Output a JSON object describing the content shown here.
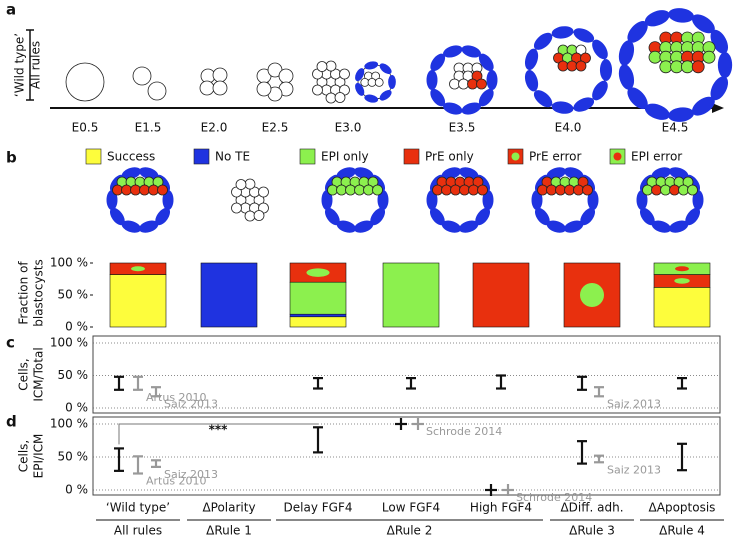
{
  "panel_labels": [
    "a",
    "b",
    "c",
    "d"
  ],
  "a": {
    "ylabel": [
      "‘Wild type’",
      "All rules"
    ],
    "stages": [
      "E0.5",
      "E1.5",
      "E2.0",
      "E2.5",
      "E3.0",
      "E3.5",
      "E4.0",
      "E4.5"
    ]
  },
  "chart_data": [
    {
      "type": "stacked_bar",
      "ylabel": [
        "Fraction of",
        "blastocysts"
      ],
      "categories": [
        "‘Wild type’",
        "ΔPolarity",
        "Delay FGF4",
        "Low FGF4",
        "High FGF4",
        "ΔDiff. adh.",
        "ΔApoptosis"
      ],
      "groups": [
        "All rules",
        "ΔRule 1",
        "ΔRule 2",
        "ΔRule 3",
        "ΔRule 4"
      ],
      "series": [
        {
          "name": "Success",
          "color": "#fdfd3c",
          "values": [
            82,
            0,
            16,
            0,
            0,
            0,
            62
          ]
        },
        {
          "name": "No TE",
          "color": "#1f33e0",
          "values": [
            0,
            100,
            4,
            0,
            0,
            0,
            0
          ]
        },
        {
          "name": "EPI only",
          "color": "#8cf04e",
          "values": [
            0,
            0,
            50,
            100,
            0,
            0,
            0
          ]
        },
        {
          "name": "PrE only",
          "color": "#e8300e",
          "values": [
            0,
            0,
            0,
            0,
            100,
            0,
            0
          ]
        },
        {
          "name": "PrE error",
          "color": "#e8300e",
          "inner": "#8cf04e",
          "values": [
            18,
            0,
            30,
            0,
            0,
            100,
            20
          ]
        },
        {
          "name": "EPI error",
          "color": "#8cf04e",
          "inner": "#e8300e",
          "values": [
            0,
            0,
            0,
            0,
            0,
            0,
            18
          ]
        }
      ],
      "ylim": [
        0,
        100
      ],
      "yticks": [
        {
          "value": 0,
          "label": "0 %"
        },
        {
          "value": 50,
          "label": "50 %"
        },
        {
          "value": 100,
          "label": "100 %"
        }
      ]
    },
    {
      "type": "errorbar",
      "ylabel": [
        "Cells,",
        "ICM/Total"
      ],
      "series": [
        {
          "color": "#111111",
          "values": [
            38,
            null,
            38,
            38,
            40,
            38,
            38
          ],
          "errors": [
            10,
            null,
            8,
            8,
            10,
            10,
            8
          ]
        },
        {
          "name": "Artus 2010",
          "color": "#999999",
          "values": [
            38,
            null,
            null,
            null,
            null,
            null,
            null
          ],
          "errors": [
            10,
            null,
            null,
            null,
            null,
            null,
            null
          ]
        },
        {
          "name": "Saiz 2013",
          "color": "#999999",
          "values": [
            25,
            null,
            null,
            null,
            null,
            25,
            null
          ],
          "errors": [
            7,
            null,
            null,
            null,
            null,
            7,
            null
          ]
        }
      ],
      "ylim": [
        0,
        100
      ],
      "grid": true,
      "yticks": [
        {
          "value": 0,
          "label": "0 %"
        },
        {
          "value": 50,
          "label": "50 %"
        },
        {
          "value": 100,
          "label": "100 %"
        }
      ]
    },
    {
      "type": "errorbar",
      "ylabel": [
        "Cells,",
        "EPI/ICM"
      ],
      "annotation": "***",
      "series": [
        {
          "color": "#111111",
          "values": [
            46,
            null,
            76,
            100,
            0,
            57,
            50
          ],
          "errors": [
            17,
            null,
            19,
            0,
            0,
            17,
            20
          ]
        },
        {
          "name": "Artus 2010",
          "color": "#999999",
          "values": [
            38,
            null,
            null,
            null,
            null,
            null,
            null
          ],
          "errors": [
            13,
            null,
            null,
            null,
            null,
            null,
            null
          ]
        },
        {
          "name": "Saiz 2013",
          "color": "#999999",
          "values": [
            40,
            null,
            null,
            null,
            null,
            47,
            null
          ],
          "errors": [
            5,
            null,
            null,
            null,
            null,
            5,
            null
          ]
        },
        {
          "name": "Schrode 2014",
          "color": "#999999",
          "values": [
            null,
            null,
            null,
            100,
            0,
            null,
            null
          ],
          "errors": [
            null,
            null,
            null,
            0,
            0,
            null,
            null
          ]
        }
      ],
      "ylim": [
        0,
        100
      ],
      "grid": true,
      "yticks": [
        {
          "value": 0,
          "label": "0 %"
        },
        {
          "value": 50,
          "label": "50 %"
        },
        {
          "value": 100,
          "label": "100 %"
        }
      ]
    }
  ]
}
